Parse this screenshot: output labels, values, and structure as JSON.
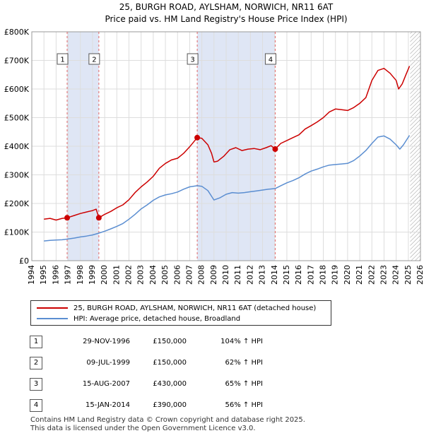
{
  "chart_data": {
    "type": "line",
    "title": "25, BURGH ROAD, AYLSHAM, NORWICH, NR11 6AT",
    "subtitle": "Price paid vs. HM Land Registry's House Price Index (HPI)",
    "xlim": [
      1994,
      2026
    ],
    "ylim": [
      0,
      800000
    ],
    "x_ticks": [
      "1994",
      "1995",
      "1996",
      "1997",
      "1998",
      "1999",
      "2000",
      "2001",
      "2002",
      "2003",
      "2004",
      "2005",
      "2006",
      "2007",
      "2008",
      "2009",
      "2010",
      "2011",
      "2012",
      "2013",
      "2014",
      "2015",
      "2016",
      "2017",
      "2018",
      "2019",
      "2020",
      "2021",
      "2022",
      "2023",
      "2024",
      "2025",
      "2026"
    ],
    "y_ticks": [
      {
        "value": 0,
        "label": "£0"
      },
      {
        "value": 100000,
        "label": "£100K"
      },
      {
        "value": 200000,
        "label": "£200K"
      },
      {
        "value": 300000,
        "label": "£300K"
      },
      {
        "value": 400000,
        "label": "£400K"
      },
      {
        "value": 500000,
        "label": "£500K"
      },
      {
        "value": 600000,
        "label": "£600K"
      },
      {
        "value": 700000,
        "label": "£700K"
      },
      {
        "value": 800000,
        "label": "£800K"
      }
    ],
    "ownership_bands": [
      [
        1996.91,
        1999.52
      ],
      [
        2007.62,
        2014.04
      ]
    ],
    "hatch_after": 2025.15,
    "series": [
      {
        "name": "25, BURGH ROAD, AYLSHAM, NORWICH, NR11 6AT (detached house)",
        "color": "#cc0000",
        "points": [
          [
            1995.0,
            145000
          ],
          [
            1995.5,
            148000
          ],
          [
            1996.0,
            142000
          ],
          [
            1996.5,
            148000
          ],
          [
            1996.91,
            150000
          ],
          [
            1997.5,
            158000
          ],
          [
            1998.0,
            165000
          ],
          [
            1998.5,
            170000
          ],
          [
            1999.0,
            175000
          ],
          [
            1999.3,
            180000
          ],
          [
            1999.52,
            150000
          ],
          [
            2000.0,
            162000
          ],
          [
            2000.5,
            172000
          ],
          [
            2001.0,
            185000
          ],
          [
            2001.5,
            195000
          ],
          [
            2002.0,
            213000
          ],
          [
            2002.5,
            238000
          ],
          [
            2003.0,
            258000
          ],
          [
            2003.5,
            275000
          ],
          [
            2004.0,
            295000
          ],
          [
            2004.5,
            323000
          ],
          [
            2005.0,
            340000
          ],
          [
            2005.5,
            352000
          ],
          [
            2006.0,
            358000
          ],
          [
            2006.5,
            375000
          ],
          [
            2007.0,
            398000
          ],
          [
            2007.62,
            430000
          ],
          [
            2008.0,
            428000
          ],
          [
            2008.5,
            405000
          ],
          [
            2008.8,
            375000
          ],
          [
            2009.0,
            345000
          ],
          [
            2009.3,
            348000
          ],
          [
            2009.8,
            365000
          ],
          [
            2010.3,
            388000
          ],
          [
            2010.8,
            395000
          ],
          [
            2011.3,
            385000
          ],
          [
            2011.8,
            390000
          ],
          [
            2012.3,
            392000
          ],
          [
            2012.8,
            388000
          ],
          [
            2013.3,
            395000
          ],
          [
            2013.7,
            402000
          ],
          [
            2014.04,
            390000
          ],
          [
            2014.5,
            410000
          ],
          [
            2015.0,
            420000
          ],
          [
            2015.5,
            430000
          ],
          [
            2016.0,
            440000
          ],
          [
            2016.5,
            460000
          ],
          [
            2017.0,
            472000
          ],
          [
            2017.5,
            485000
          ],
          [
            2018.0,
            500000
          ],
          [
            2018.5,
            520000
          ],
          [
            2019.0,
            530000
          ],
          [
            2019.5,
            528000
          ],
          [
            2020.0,
            525000
          ],
          [
            2020.5,
            535000
          ],
          [
            2021.0,
            550000
          ],
          [
            2021.5,
            570000
          ],
          [
            2022.0,
            630000
          ],
          [
            2022.5,
            665000
          ],
          [
            2023.0,
            672000
          ],
          [
            2023.5,
            655000
          ],
          [
            2024.0,
            630000
          ],
          [
            2024.2,
            600000
          ],
          [
            2024.5,
            618000
          ],
          [
            2024.8,
            650000
          ],
          [
            2025.0,
            670000
          ],
          [
            2025.1,
            680000
          ]
        ]
      },
      {
        "name": "HPI: Average price, detached house, Broadland",
        "color": "#5b8ed1",
        "points": [
          [
            1995.0,
            69000
          ],
          [
            1995.5,
            71000
          ],
          [
            1996.0,
            72000
          ],
          [
            1996.5,
            73000
          ],
          [
            1997.0,
            76000
          ],
          [
            1997.5,
            79000
          ],
          [
            1998.0,
            83000
          ],
          [
            1998.5,
            86000
          ],
          [
            1999.0,
            90000
          ],
          [
            1999.5,
            96000
          ],
          [
            2000.0,
            103000
          ],
          [
            2000.5,
            111000
          ],
          [
            2001.0,
            120000
          ],
          [
            2001.5,
            130000
          ],
          [
            2002.0,
            145000
          ],
          [
            2002.5,
            162000
          ],
          [
            2003.0,
            181000
          ],
          [
            2003.5,
            195000
          ],
          [
            2004.0,
            211000
          ],
          [
            2004.5,
            223000
          ],
          [
            2005.0,
            230000
          ],
          [
            2005.5,
            234000
          ],
          [
            2006.0,
            240000
          ],
          [
            2006.5,
            250000
          ],
          [
            2007.0,
            258000
          ],
          [
            2007.62,
            262000
          ],
          [
            2008.0,
            260000
          ],
          [
            2008.5,
            245000
          ],
          [
            2008.8,
            225000
          ],
          [
            2009.0,
            212000
          ],
          [
            2009.5,
            220000
          ],
          [
            2010.0,
            232000
          ],
          [
            2010.5,
            238000
          ],
          [
            2011.0,
            236000
          ],
          [
            2011.5,
            238000
          ],
          [
            2012.0,
            241000
          ],
          [
            2012.5,
            244000
          ],
          [
            2013.0,
            247000
          ],
          [
            2013.5,
            250000
          ],
          [
            2014.04,
            252000
          ],
          [
            2014.5,
            262000
          ],
          [
            2015.0,
            272000
          ],
          [
            2015.5,
            280000
          ],
          [
            2016.0,
            290000
          ],
          [
            2016.5,
            303000
          ],
          [
            2017.0,
            313000
          ],
          [
            2017.5,
            320000
          ],
          [
            2018.0,
            328000
          ],
          [
            2018.5,
            334000
          ],
          [
            2019.0,
            336000
          ],
          [
            2019.5,
            338000
          ],
          [
            2020.0,
            340000
          ],
          [
            2020.5,
            350000
          ],
          [
            2021.0,
            366000
          ],
          [
            2021.5,
            385000
          ],
          [
            2022.0,
            410000
          ],
          [
            2022.5,
            432000
          ],
          [
            2023.0,
            436000
          ],
          [
            2023.5,
            425000
          ],
          [
            2024.0,
            405000
          ],
          [
            2024.3,
            390000
          ],
          [
            2024.6,
            405000
          ],
          [
            2024.9,
            425000
          ],
          [
            2025.1,
            438000
          ]
        ]
      }
    ],
    "markers": [
      {
        "label": "1",
        "x": 1996.91,
        "y": 150000
      },
      {
        "label": "2",
        "x": 1999.52,
        "y": 150000
      },
      {
        "label": "3",
        "x": 2007.62,
        "y": 430000
      },
      {
        "label": "4",
        "x": 2014.04,
        "y": 390000
      }
    ]
  },
  "legend": {
    "items": [
      {
        "label": "25, BURGH ROAD, AYLSHAM, NORWICH, NR11 6AT (detached house)",
        "color": "#cc0000"
      },
      {
        "label": "HPI: Average price, detached house, Broadland",
        "color": "#5b8ed1"
      }
    ]
  },
  "sales": [
    {
      "num": "1",
      "date": "29-NOV-1996",
      "price": "£150,000",
      "hpi": "104% ↑ HPI"
    },
    {
      "num": "2",
      "date": "09-JUL-1999",
      "price": "£150,000",
      "hpi": "62% ↑ HPI"
    },
    {
      "num": "3",
      "date": "15-AUG-2007",
      "price": "£430,000",
      "hpi": "65% ↑ HPI"
    },
    {
      "num": "4",
      "date": "15-JAN-2014",
      "price": "£390,000",
      "hpi": "56% ↑ HPI"
    }
  ],
  "footer": {
    "line1": "Contains HM Land Registry data © Crown copyright and database right 2025.",
    "line2": "This data is licensed under the Open Government Licence v3.0."
  }
}
